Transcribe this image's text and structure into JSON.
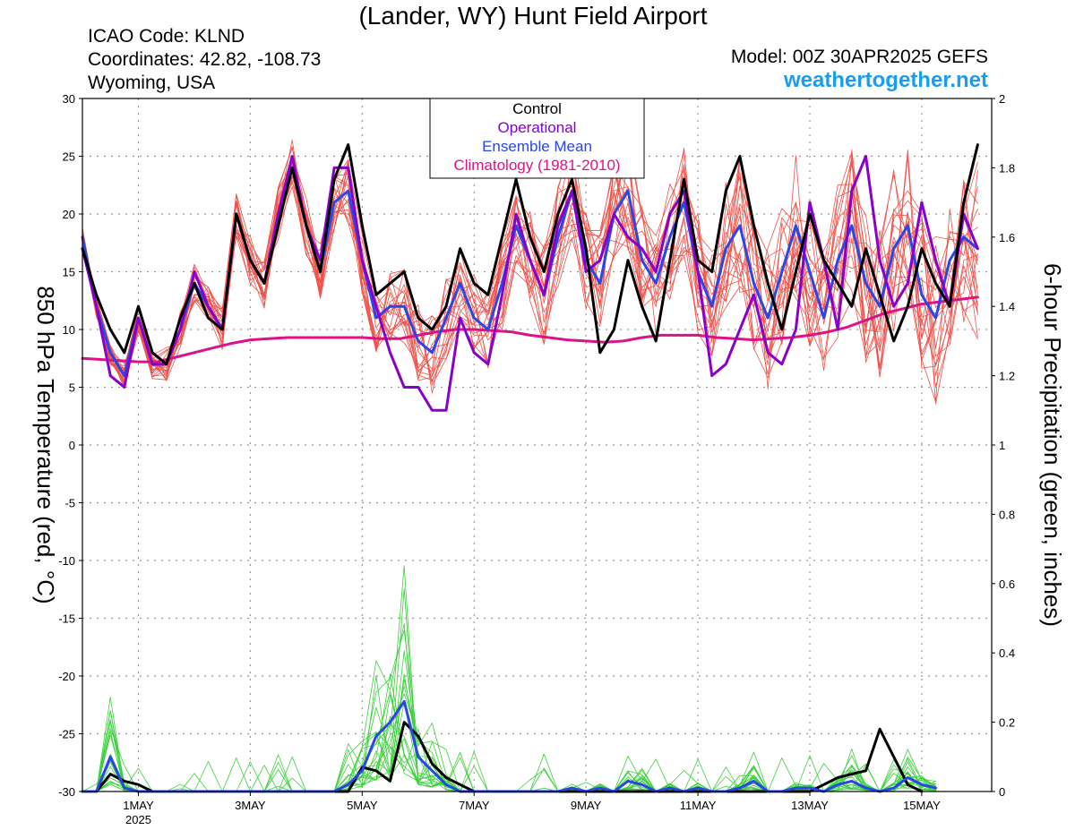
{
  "header": {
    "title": "(Lander, WY) Hunt Field Airport",
    "icao": "ICAO Code: KLND",
    "coordinates": "Coordinates: 42.82, -108.73",
    "region": "Wyoming, USA",
    "model": "Model: 00Z 30APR2025 GEFS",
    "website": "weathertogether.net"
  },
  "chart_data": {
    "type": "line",
    "title": "(Lander, WY) Hunt Field Airport",
    "ylabel_left": "850 hPa Temperature (red, °C)",
    "ylabel_right": "6-hour Precipitation (green, inches)",
    "ylim_left": [
      -30,
      30
    ],
    "yticks_left": [
      "30",
      "25",
      "20",
      "15",
      "10",
      "5",
      "0",
      "-5",
      "-10",
      "-15",
      "-20",
      "-25",
      "-30"
    ],
    "ylim_right": [
      0,
      2
    ],
    "yticks_right": [
      "2",
      "1.8",
      "1.6",
      "1.4",
      "1.2",
      "1",
      "0.8",
      "0.6",
      "0.4",
      "0.2",
      "0"
    ],
    "xlim_hours": [
      0,
      390
    ],
    "x_unit": "hours since 00Z 30APR2025",
    "xticks": [
      {
        "label": "1MAY",
        "sublabel": "2025",
        "hour": 24
      },
      {
        "label": "3MAY",
        "hour": 72
      },
      {
        "label": "5MAY",
        "hour": 120
      },
      {
        "label": "7MAY",
        "hour": 168
      },
      {
        "label": "9MAY",
        "hour": 216
      },
      {
        "label": "11MAY",
        "hour": 264
      },
      {
        "label": "13MAY",
        "hour": 312
      },
      {
        "label": "15MAY",
        "hour": 360
      }
    ],
    "grid": true,
    "legend": {
      "placement": "top-center",
      "entries": [
        {
          "label": "Control",
          "color": "#000000"
        },
        {
          "label": "Operational",
          "color": "#8800cc"
        },
        {
          "label": "Ensemble Mean",
          "color": "#2a46e6"
        },
        {
          "label": "Climatology (1981-2010)",
          "color": "#dd1188"
        }
      ]
    },
    "colors": {
      "ensemble_temp": "#f0524a",
      "ensemble_precip": "#3ccf3c"
    },
    "series_temp": [
      {
        "name": "Control",
        "color": "#000000",
        "values": [
          17,
          13,
          10,
          8,
          12,
          8,
          7,
          11,
          14,
          11,
          10,
          20,
          16,
          14,
          19,
          24,
          19,
          15,
          23,
          26,
          19,
          13,
          14,
          15,
          11,
          10,
          12,
          17,
          14,
          13,
          18,
          23,
          18,
          15,
          20,
          23,
          17,
          8,
          10,
          16,
          12,
          9,
          16,
          23,
          16,
          15,
          22,
          25,
          19,
          14,
          10,
          15,
          20,
          16,
          14,
          12,
          17,
          13,
          9,
          12,
          17,
          14,
          12,
          21,
          26
        ]
      },
      {
        "name": "Operational",
        "color": "#8800cc",
        "values": [
          17,
          12,
          6,
          5,
          11,
          7,
          7,
          10,
          15,
          12,
          10,
          20,
          16,
          14,
          20,
          25,
          19,
          16,
          24,
          24,
          16,
          12,
          8,
          5,
          5,
          3,
          3,
          11,
          8,
          7,
          13,
          20,
          16,
          13,
          19,
          22,
          15,
          16,
          20,
          18,
          17,
          15,
          20,
          22,
          15,
          6,
          7,
          10,
          13,
          8,
          7,
          10,
          21,
          16,
          10,
          22,
          25,
          16,
          12,
          14,
          21,
          16,
          12,
          20,
          17
        ]
      },
      {
        "name": "Ensemble Mean",
        "color": "#2a46e6",
        "values": [
          18,
          12,
          8,
          6,
          11,
          7,
          7,
          10,
          14,
          12,
          10,
          20,
          16,
          14,
          20,
          24,
          19,
          15,
          21,
          22,
          16,
          11,
          12,
          12,
          9,
          8,
          11,
          14,
          11,
          10,
          14,
          19,
          16,
          13,
          18,
          22,
          16,
          14,
          20,
          22,
          16,
          14,
          18,
          21,
          15,
          12,
          17,
          19,
          14,
          11,
          15,
          19,
          15,
          11,
          16,
          19,
          14,
          12,
          17,
          19,
          13,
          11,
          16,
          18,
          17
        ]
      },
      {
        "name": "Climatology (1981-2010)",
        "color": "#dd1188",
        "values": [
          7.5,
          7.4,
          7.3,
          7.2,
          7.2,
          7.6,
          8,
          8.4,
          8.8,
          9.1,
          9.2,
          9.3,
          9.3,
          9.3,
          9.3,
          9.3,
          9.2,
          9.2,
          9.5,
          9.8,
          10,
          10,
          9.9,
          9.8,
          9.5,
          9.3,
          9.1,
          9,
          8.9,
          9,
          9.3,
          9.5,
          9.5,
          9.5,
          9.3,
          9.2,
          9.1,
          9.2,
          9.3,
          9.5,
          9.8,
          10.2,
          10.8,
          11.4,
          11.8,
          12.2,
          12.4,
          12.6,
          12.8
        ]
      }
    ],
    "series_precip": [
      {
        "name": "Control",
        "color": "#000000",
        "values": [
          0,
          0,
          0.05,
          0.03,
          0.02,
          0,
          0,
          0,
          0,
          0,
          0,
          0,
          0,
          0,
          0,
          0,
          0,
          0,
          0,
          0,
          0.07,
          0.06,
          0.03,
          0.2,
          0.16,
          0.08,
          0.04,
          0.02,
          0,
          0,
          0,
          0,
          0,
          0,
          0,
          0,
          0,
          0,
          0,
          0,
          0,
          0,
          0,
          0,
          0,
          0,
          0,
          0,
          0,
          0,
          0,
          0,
          0,
          0.02,
          0.04,
          0.05,
          0.06,
          0.18,
          0.1,
          0.02,
          0
        ]
      },
      {
        "name": "Ensemble Mean",
        "color": "#2a46e6",
        "values": [
          0,
          0,
          0.1,
          0.01,
          0,
          0,
          0,
          0,
          0,
          0,
          0,
          0,
          0,
          0,
          0,
          0,
          0,
          0,
          0,
          0.02,
          0.06,
          0.16,
          0.2,
          0.26,
          0.1,
          0.06,
          0.02,
          0,
          0,
          0,
          0,
          0,
          0,
          0,
          0,
          0.01,
          0,
          0.01,
          0,
          0.03,
          0.02,
          0,
          0.01,
          0,
          0.01,
          0,
          0,
          0.01,
          0.03,
          0,
          0,
          0.01,
          0.01,
          0,
          0.02,
          0.03,
          0.01,
          0,
          0.01,
          0.04,
          0.02,
          0.01
        ]
      }
    ]
  }
}
